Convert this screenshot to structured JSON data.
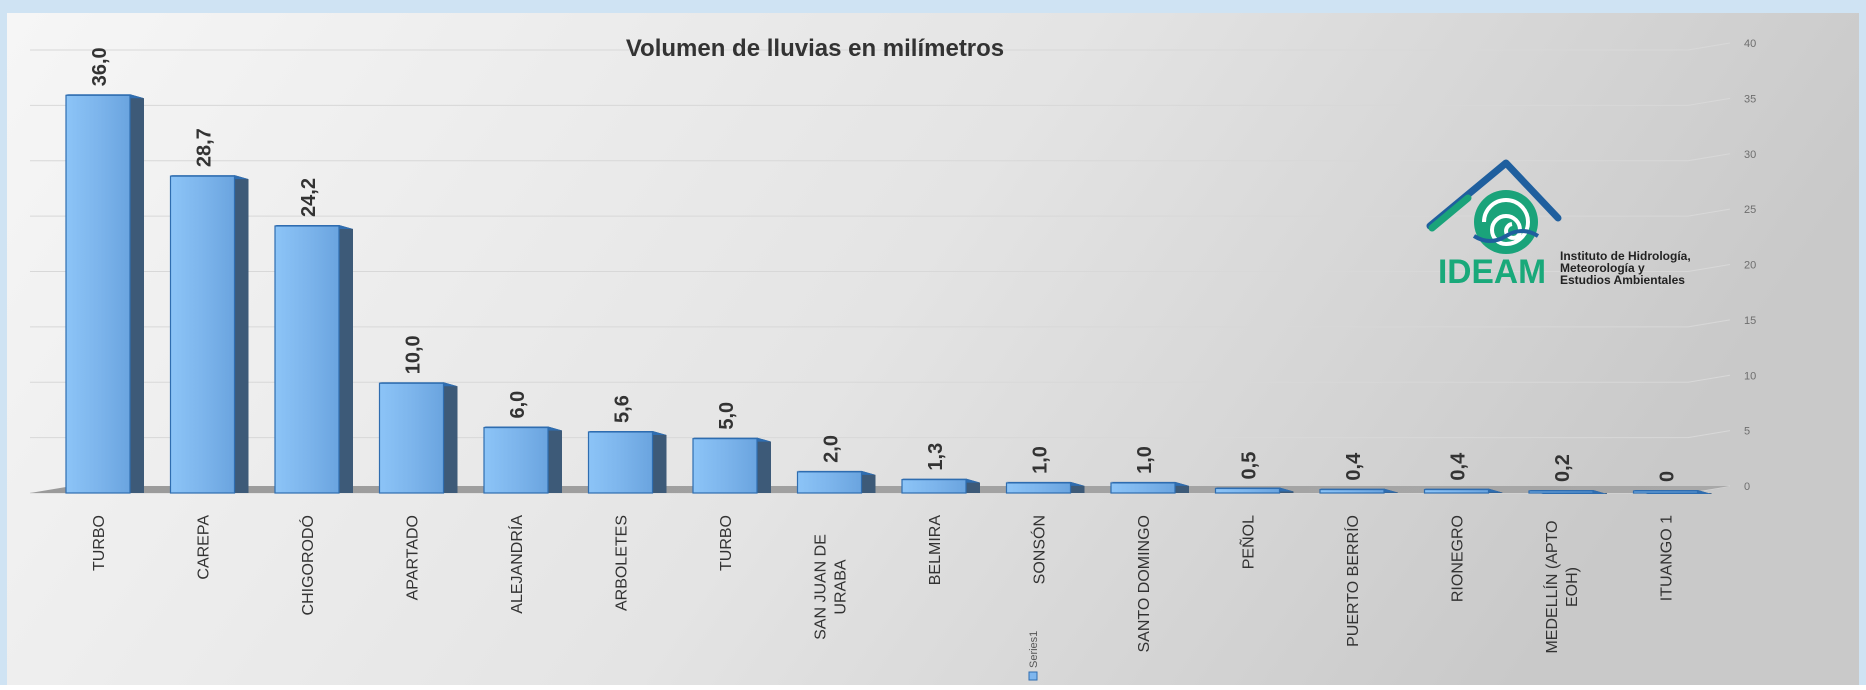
{
  "chart_data": {
    "type": "bar",
    "title": "Volumen de lluvias en milímetros",
    "categories": [
      "TURBO",
      "CAREPA",
      "CHIGORODÓ",
      "APARTADO",
      "ALEJANDRÍA",
      "ARBOLETES",
      "TURBO",
      "SAN JUAN DE URABA",
      "BELMIRA",
      "SONSÓN",
      "SANTO DOMINGO",
      "PEÑOL",
      "PUERTO BERRÍO",
      "RIONEGRO",
      "MEDELLÍN (APTO EOH)",
      "ITUANGO 1"
    ],
    "category_lines": [
      [
        "TURBO"
      ],
      [
        "CAREPA"
      ],
      [
        "CHIGORODÓ"
      ],
      [
        "APARTADO"
      ],
      [
        "ALEJANDRÍA"
      ],
      [
        "ARBOLETES"
      ],
      [
        "TURBO"
      ],
      [
        "SAN JUAN DE",
        "URABA"
      ],
      [
        "BELMIRA"
      ],
      [
        "SONSÓN"
      ],
      [
        "SANTO DOMINGO"
      ],
      [
        "PEÑOL"
      ],
      [
        "PUERTO BERRÍO"
      ],
      [
        "RIONEGRO"
      ],
      [
        "MEDELLÍN (APTO",
        "EOH)"
      ],
      [
        "ITUANGO 1"
      ]
    ],
    "series": [
      {
        "name": "Series1",
        "values": [
          36.0,
          28.7,
          24.2,
          10.0,
          6.0,
          5.6,
          5.0,
          2.0,
          1.3,
          1.0,
          1.0,
          0.5,
          0.4,
          0.4,
          0.2,
          0
        ],
        "labels": [
          "36,0",
          "28,7",
          "24,2",
          "10,0",
          "6,0",
          "5,6",
          "5,0",
          "2,0",
          "1,3",
          "1,0",
          "1,0",
          "0,5",
          "0,4",
          "0,4",
          "0,2",
          "0"
        ]
      }
    ],
    "y_ticks": [
      "0",
      "5",
      "10",
      "15",
      "20",
      "25",
      "30",
      "35",
      "40"
    ],
    "ylim": [
      0,
      40
    ],
    "yaxis_position": "right",
    "grid": true,
    "legend_position": "bottom-center",
    "colors": {
      "bar": "#7eb6ee",
      "bar_side": "#3d5a78",
      "bar_top": "#2f6db0",
      "floor": "#999999"
    }
  },
  "logo": {
    "brand": "IDEAM",
    "tagline": [
      "Instituto de Hidrología,",
      "Meteorología y",
      "Estudios Ambientales"
    ]
  }
}
